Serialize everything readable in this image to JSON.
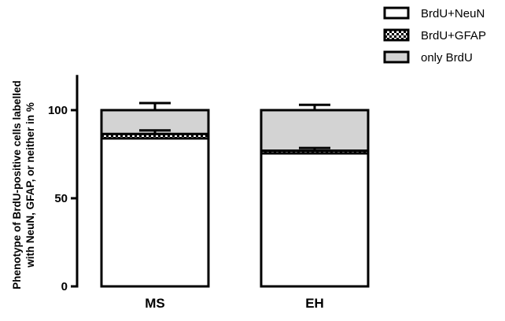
{
  "chart_data": {
    "type": "bar",
    "stacked": true,
    "categories": [
      "MS",
      "EH"
    ],
    "series": [
      {
        "name": "BrdU+NeuN",
        "values": [
          84,
          75.5
        ],
        "fill": "#ffffff",
        "pattern": "solid"
      },
      {
        "name": "BrdU+GFAP",
        "values": [
          2.5,
          1.5
        ],
        "fill": "#000000",
        "pattern": "checker"
      },
      {
        "name": "only BrdU",
        "values": [
          13.5,
          23
        ],
        "fill": "#d3d3d3",
        "pattern": "solid"
      }
    ],
    "error_bars": {
      "BrdU+GFAP_top": [
        {
          "value": 86.5,
          "err": 2
        },
        {
          "value": 77,
          "err": 1.5
        }
      ],
      "total_top": [
        {
          "value": 100,
          "err": 4
        },
        {
          "value": 100,
          "err": 3
        }
      ]
    },
    "ylabel_line1": "Phenotype of BrdU-positive cells labelled",
    "ylabel_line2": "with NeuN, GFAP, or neither in %",
    "ylim": [
      0,
      120
    ],
    "yticks": [
      0,
      50,
      100
    ],
    "grid": false,
    "legend_position": "top-right"
  }
}
